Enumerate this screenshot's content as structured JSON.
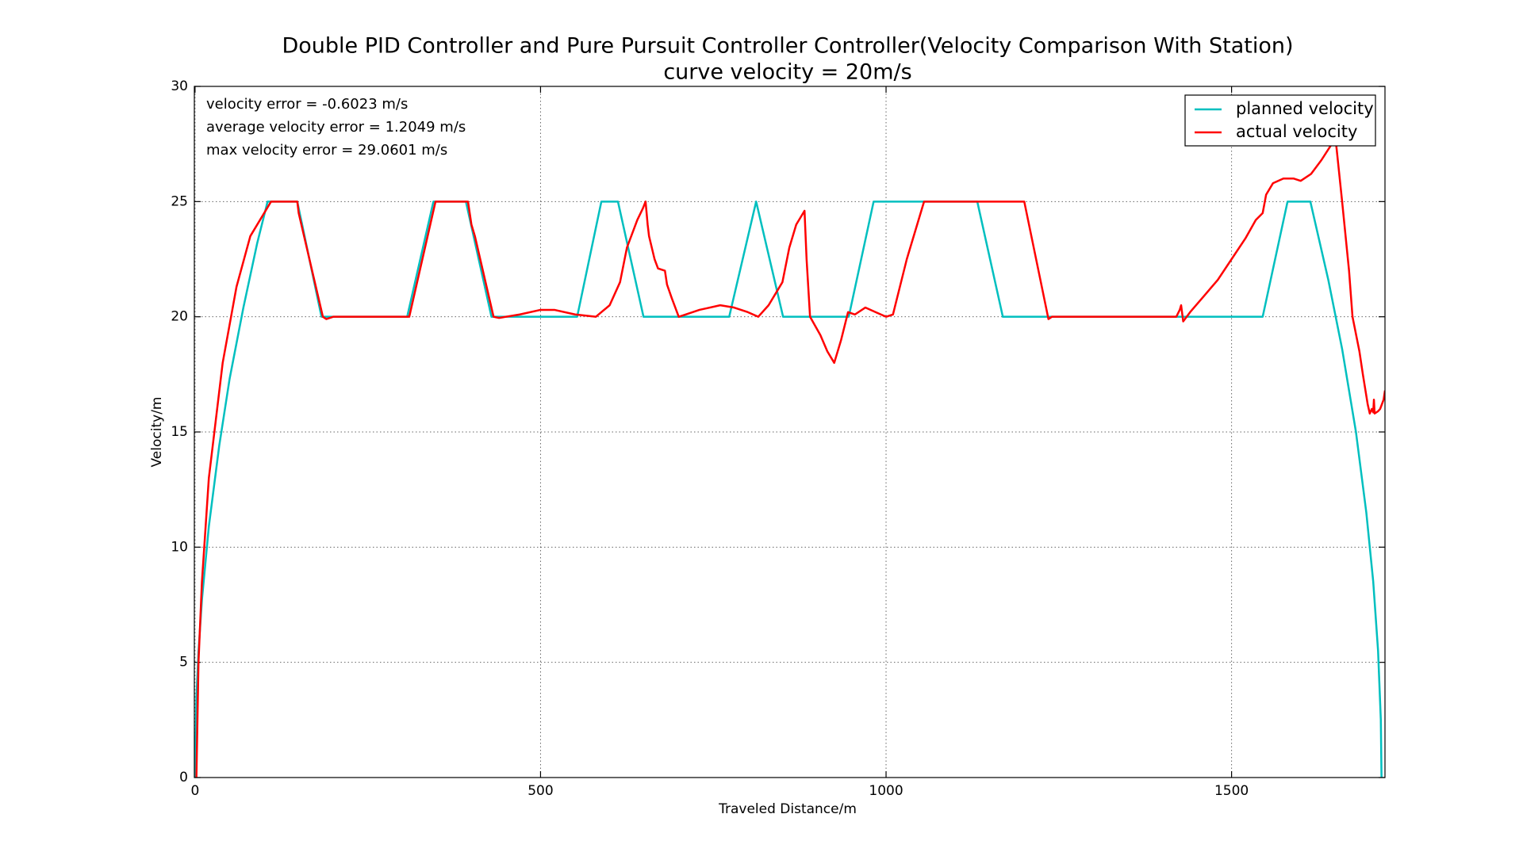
{
  "chart_data": {
    "type": "line",
    "title": "Double PID Controller and Pure Pursuit Controller Controller(Velocity Comparison With Station)",
    "subtitle": "curve velocity = 20m/s",
    "x_label": "Traveled Distance/m",
    "y_label": "Velocity/m",
    "annotations": [
      "velocity error = -0.6023 m/s",
      "average velocity error = 1.2049 m/s",
      "max velocity error = 29.0601 m/s"
    ],
    "xlim": [
      -1,
      1722
    ],
    "ylim": [
      0,
      30
    ],
    "xticks": [
      0,
      500,
      1000,
      1500
    ],
    "yticks": [
      0,
      5,
      10,
      15,
      20,
      25,
      30
    ],
    "grid": true,
    "legend": "upper right",
    "series": [
      {
        "name": "planned velocity",
        "color": "#00bfbf",
        "x": [
          0,
          2,
          5,
          10,
          20,
          35,
          50,
          70,
          90,
          105,
          148,
          183,
          307,
          345,
          392,
          429,
          553,
          588,
          612,
          649,
          773,
          812,
          851,
          946,
          982,
          1132,
          1169,
          1545,
          1581,
          1614,
          1640,
          1660,
          1680,
          1695,
          1705,
          1712,
          1716,
          1717
        ],
        "values": [
          0,
          3.45,
          5.46,
          7.72,
          10.9,
          14.4,
          17.3,
          20.4,
          23.2,
          25,
          25,
          20,
          20,
          25,
          25,
          20,
          20,
          25,
          25,
          20,
          20,
          25,
          20,
          20,
          25,
          25,
          20,
          20,
          25,
          25,
          21.6,
          18.6,
          15,
          11.5,
          8.5,
          5.5,
          2.5,
          0
        ]
      },
      {
        "name": "actual velocity",
        "color": "#ff0000",
        "x": [
          2,
          5,
          10,
          20,
          40,
          60,
          80,
          110,
          148,
          150,
          185,
          190,
          200,
          310,
          348,
          395,
          400,
          405,
          432,
          440,
          470,
          500,
          520,
          550,
          580,
          600,
          615,
          625,
          640,
          648,
          652,
          655,
          657,
          665,
          670,
          680,
          683,
          690,
          700,
          710,
          730,
          760,
          780,
          800,
          815,
          830,
          850,
          860,
          870,
          882,
          885,
          890,
          905,
          915,
          925,
          935,
          945,
          955,
          970,
          985,
          1000,
          1010,
          1030,
          1055,
          1200,
          1235,
          1240,
          1420,
          1425,
          1427,
          1430,
          1440,
          1460,
          1480,
          1500,
          1520,
          1535,
          1545,
          1550,
          1560,
          1575,
          1590,
          1600,
          1615,
          1630,
          1645,
          1650,
          1652,
          1660,
          1670,
          1675,
          1685,
          1690,
          1697,
          1700,
          1703,
          1705,
          1706,
          1707,
          1712,
          1715,
          1720,
          1722
        ],
        "values": [
          0,
          5,
          8.5,
          13,
          18,
          21.3,
          23.5,
          25,
          25,
          24.5,
          20,
          19.9,
          20,
          20,
          25,
          25,
          24,
          23.5,
          20,
          19.95,
          20.1,
          20.3,
          20.3,
          20.1,
          20,
          20.5,
          21.5,
          23,
          24.2,
          24.7,
          25,
          24,
          23.5,
          22.5,
          22.1,
          22,
          21.4,
          20.8,
          20,
          20.1,
          20.3,
          20.5,
          20.4,
          20.2,
          20,
          20.5,
          21.5,
          23,
          24,
          24.6,
          22.5,
          20,
          19.2,
          18.5,
          18,
          19,
          20.2,
          20.1,
          20.4,
          20.2,
          20,
          20.1,
          22.5,
          25,
          25,
          19.9,
          20,
          20,
          20.3,
          20.5,
          19.8,
          20.2,
          20.9,
          21.6,
          22.5,
          23.4,
          24.2,
          24.5,
          25.3,
          25.8,
          26,
          26,
          25.9,
          26.2,
          26.8,
          27.5,
          27.8,
          27.3,
          25,
          22,
          20,
          18.5,
          17.5,
          16.2,
          15.8,
          16,
          15.85,
          16.4,
          15.8,
          15.9,
          16,
          16.4,
          16.8
        ]
      }
    ]
  }
}
